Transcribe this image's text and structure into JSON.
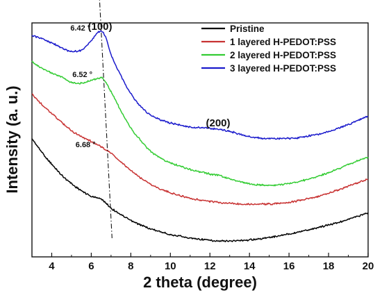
{
  "chart_data": {
    "type": "line",
    "title": "",
    "xlabel": "2 theta (degree)",
    "ylabel": "Intensity (a. u.)",
    "xlim": [
      3,
      20
    ],
    "ylim": [
      0,
      100
    ],
    "x_ticks": [
      4,
      6,
      8,
      10,
      12,
      14,
      16,
      18,
      20
    ],
    "y_ticks_labeled": false,
    "grid": false,
    "legend_position": "top-right",
    "series": [
      {
        "name": "Pristine",
        "color": "#000000",
        "x": [
          3,
          3.5,
          4,
          4.5,
          5,
          5.5,
          6,
          6.5,
          7,
          7.5,
          8,
          8.5,
          9,
          9.5,
          10,
          11,
          12,
          12.5,
          13,
          14,
          15,
          16,
          17,
          18,
          19,
          20
        ],
        "y": [
          50.5,
          44.8,
          39.6,
          35,
          31.3,
          28.3,
          25.9,
          24.7,
          20.9,
          18,
          15.6,
          13.6,
          12,
          10.7,
          9.6,
          8.1,
          7.1,
          6.7,
          6.8,
          7.3,
          8.3,
          9.8,
          11.6,
          13.7,
          16,
          18.8
        ]
      },
      {
        "name": "1 layered H-PEDOT:PSS",
        "color": "#c83232",
        "x": [
          3,
          3.5,
          4,
          4.5,
          5,
          5.5,
          6,
          6.5,
          7,
          7.5,
          8,
          8.5,
          9,
          9.5,
          10,
          11,
          12,
          13,
          14,
          15,
          16,
          17,
          18,
          19,
          20
        ],
        "y": [
          69.5,
          65.2,
          61.3,
          57.5,
          54,
          51.5,
          49.3,
          47.1,
          44.3,
          40.5,
          36.9,
          33.8,
          31.1,
          29,
          27.4,
          25.1,
          23.7,
          22.9,
          22.5,
          22.6,
          23.4,
          24.9,
          27.2,
          30.2,
          33.3
        ]
      },
      {
        "name": "2 layered H-PEDOT:PSS",
        "color": "#33cc33",
        "x": [
          3,
          3.5,
          4,
          4.5,
          5,
          5.5,
          6,
          6.5,
          7,
          7.5,
          8,
          8.5,
          9,
          9.5,
          10,
          11,
          12,
          12.5,
          13,
          14,
          15,
          16,
          17,
          18,
          19,
          20
        ],
        "y": [
          83.5,
          80.5,
          78.6,
          76.8,
          74.6,
          74.2,
          75.5,
          76.5,
          70.5,
          62.5,
          55.2,
          49.8,
          45.2,
          42.3,
          40.2,
          37.4,
          35.4,
          34.7,
          33.3,
          31.3,
          30.6,
          31.4,
          33.3,
          36,
          39.5,
          42.6
        ]
      },
      {
        "name": "3 layered H-PEDOT:PSS",
        "color": "#1a1acc",
        "x": [
          3,
          3.5,
          4,
          4.5,
          5,
          5.5,
          6,
          6.25,
          6.5,
          6.75,
          7,
          7.5,
          8,
          8.5,
          9,
          9.5,
          10,
          11,
          12,
          13,
          14,
          15,
          16,
          17,
          18,
          19,
          20
        ],
        "y": [
          94.5,
          93.3,
          91.5,
          89.4,
          87.8,
          88.4,
          92.4,
          95.2,
          96.4,
          93.4,
          86.5,
          77.4,
          69.8,
          64.3,
          60.7,
          58.6,
          57.3,
          55.5,
          55,
          53.6,
          51.4,
          50.5,
          50.6,
          51.7,
          53.6,
          56.6,
          60.2
        ]
      }
    ],
    "annotations": {
      "peak_100": "(100)",
      "peak_200": "(200)",
      "peak_positions": [
        {
          "label": "6.42 °",
          "x": 6.42,
          "y": 96.4
        },
        {
          "label": "6.52 °",
          "x": 6.52,
          "y": 76.5
        },
        {
          "label": "6.68 °",
          "x": 6.68,
          "y": 46.6
        }
      ],
      "guide_line": {
        "x": [
          6.4,
          7.05
        ],
        "y": [
          113,
          8
        ]
      }
    }
  }
}
